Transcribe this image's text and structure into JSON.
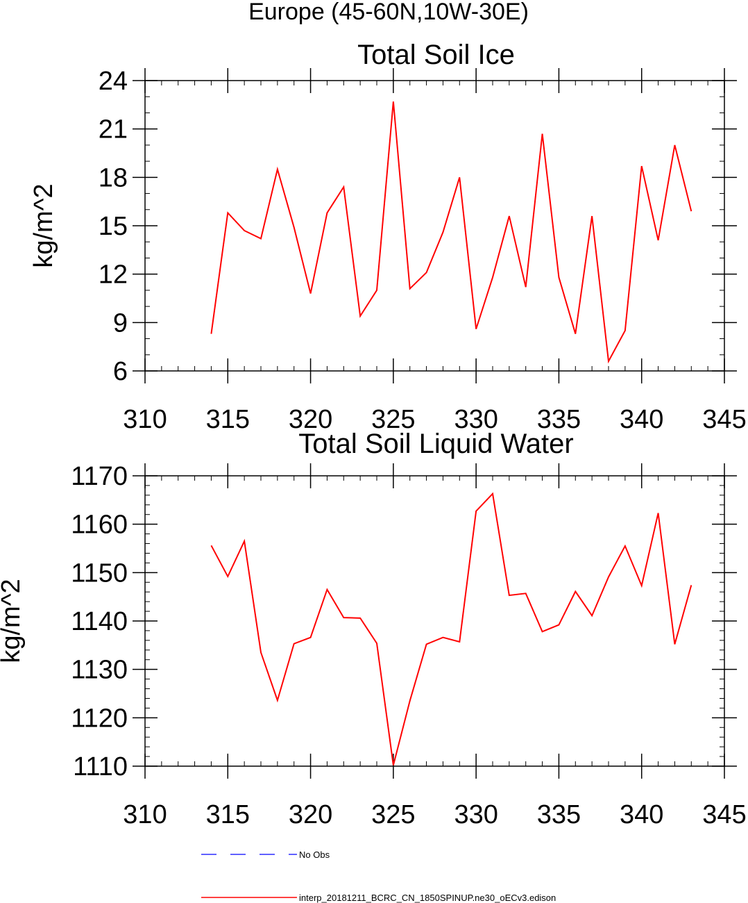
{
  "figure": {
    "main_title": "Europe (45-60N,10W-30E)"
  },
  "chart_data": [
    {
      "type": "line",
      "title": "Total Soil Ice",
      "xlabel": "",
      "ylabel": "kg/m^2",
      "xlim": [
        310,
        345
      ],
      "ylim": [
        6,
        24
      ],
      "x_ticks": [
        310,
        315,
        320,
        325,
        330,
        335,
        340,
        345
      ],
      "y_ticks": [
        6,
        9,
        12,
        15,
        18,
        21,
        24
      ],
      "x_tick_labels": [
        "310",
        "315",
        "320",
        "325",
        "330",
        "335",
        "340",
        "345"
      ],
      "y_tick_labels": [
        "6",
        "9",
        "12",
        "15",
        "18",
        "21",
        "24"
      ],
      "x_minor_step": 1,
      "y_minor_step": 1,
      "grid": false,
      "series": [
        {
          "name": "interp_20181211_BCRC_CN_1850SPINUP.ne30_oECv3.edison",
          "color": "#ff0000",
          "x": [
            314,
            315,
            316,
            317,
            318,
            319,
            320,
            321,
            322,
            323,
            324,
            325,
            326,
            327,
            328,
            329,
            330,
            331,
            332,
            333,
            334,
            335,
            336,
            337,
            338,
            339,
            340,
            341,
            342,
            343
          ],
          "values": [
            8.3,
            15.8,
            14.7,
            14.2,
            18.5,
            14.9,
            10.8,
            15.8,
            17.4,
            9.4,
            11.0,
            22.7,
            11.1,
            12.1,
            14.6,
            18.0,
            8.6,
            11.8,
            15.6,
            11.2,
            20.7,
            11.8,
            8.3,
            15.6,
            6.6,
            8.5,
            18.7,
            14.1,
            20.0,
            15.9
          ]
        }
      ]
    },
    {
      "type": "line",
      "title": "Total Soil Liquid Water",
      "xlabel": "",
      "ylabel": "kg/m^2",
      "xlim": [
        310,
        345
      ],
      "ylim": [
        1110,
        1170
      ],
      "x_ticks": [
        310,
        315,
        320,
        325,
        330,
        335,
        340,
        345
      ],
      "y_ticks": [
        1110,
        1120,
        1130,
        1140,
        1150,
        1160,
        1170
      ],
      "x_tick_labels": [
        "310",
        "315",
        "320",
        "325",
        "330",
        "335",
        "340",
        "345"
      ],
      "y_tick_labels": [
        "1110",
        "1120",
        "1130",
        "1140",
        "1150",
        "1160",
        "1170"
      ],
      "x_minor_step": 1,
      "y_minor_step": 2,
      "grid": false,
      "series": [
        {
          "name": "interp_20181211_BCRC_CN_1850SPINUP.ne30_oECv3.edison",
          "color": "#ff0000",
          "x": [
            314,
            315,
            316,
            317,
            318,
            319,
            320,
            321,
            322,
            323,
            324,
            325,
            326,
            327,
            328,
            329,
            330,
            331,
            332,
            333,
            334,
            335,
            336,
            337,
            338,
            339,
            340,
            341,
            342,
            343
          ],
          "values": [
            1155.6,
            1149.2,
            1156.5,
            1133.5,
            1123.6,
            1135.3,
            1136.6,
            1146.5,
            1140.7,
            1140.6,
            1135.4,
            1110.2,
            1123.5,
            1135.2,
            1136.6,
            1135.7,
            1162.7,
            1166.3,
            1145.3,
            1145.7,
            1137.8,
            1139.2,
            1146.1,
            1141.1,
            1149.1,
            1155.5,
            1147.3,
            1162.3,
            1135.2,
            1147.4
          ]
        }
      ]
    }
  ],
  "legend": {
    "placement": "bottom",
    "entries": [
      {
        "label": "No Obs",
        "color": "#0000ff",
        "style": "dashed"
      },
      {
        "label": "interp_20181211_BCRC_CN_1850SPINUP.ne30_oECv3.edison",
        "color": "#ff0000",
        "style": "solid"
      }
    ]
  }
}
